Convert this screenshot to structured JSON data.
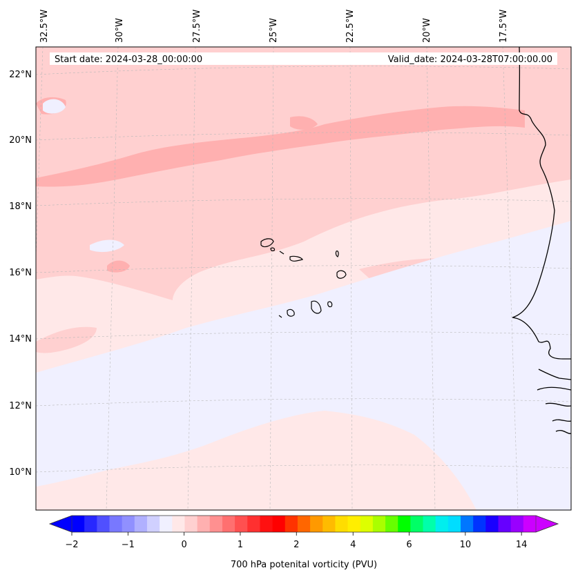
{
  "header": {
    "start_date": "Start date: 2024-03-28_00:00:00",
    "valid_date": "Valid_date: 2024-03-28T07:00:00.00"
  },
  "map": {
    "lon_labels": [
      "32.5°W",
      "30°W",
      "27.5°W",
      "25°W",
      "22.5°W",
      "20°W",
      "17.5°W"
    ],
    "lat_labels": [
      "22°N",
      "20°N",
      "18°N",
      "16°N",
      "14°N",
      "12°N",
      "10°N"
    ],
    "gridlines": true,
    "coastline": "Cape Verde islands and West African coast (Senegal, Gambia, Guinea-Bissau)",
    "colors": {
      "band_dark": "#ffb0b0",
      "band_mid": "#ffd0d0",
      "band_light": "#ffe8e8",
      "band_faint": "#f0f0ff"
    }
  },
  "colorbar": {
    "title": "700 hPa potenital vorticity (PVU)",
    "tick_labels": [
      "−2",
      "−1",
      "0",
      "1",
      "2",
      "4",
      "6",
      "10",
      "14"
    ],
    "colors": [
      "#0000ff",
      "#2828ff",
      "#5050ff",
      "#7878ff",
      "#9090ff",
      "#b0b0ff",
      "#d0d0ff",
      "#f0f0ff",
      "#ffe8e8",
      "#ffd0d0",
      "#ffb0b0",
      "#ff9090",
      "#ff7070",
      "#ff5050",
      "#ff3030",
      "#ff1010",
      "#ff0000",
      "#ff3300",
      "#ff6600",
      "#ff9900",
      "#ffbb00",
      "#ffdd00",
      "#ffee00",
      "#ddff00",
      "#aaff00",
      "#66ff00",
      "#00ff00",
      "#00ff66",
      "#00ffaa",
      "#00eeee",
      "#00ddff",
      "#0077ff",
      "#0033ff",
      "#1a00ff",
      "#6600ff",
      "#9900ff",
      "#cc00ff"
    ]
  }
}
